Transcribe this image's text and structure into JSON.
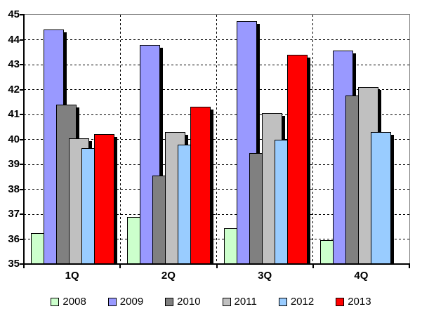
{
  "chart_data": {
    "type": "bar",
    "title": "",
    "xlabel": "",
    "ylabel": "",
    "categories": [
      "1Q",
      "2Q",
      "3Q",
      "4Q"
    ],
    "series": [
      {
        "name": "2008",
        "color": "#CCFFCC",
        "values": [
          36.25,
          36.9,
          36.45,
          35.95
        ]
      },
      {
        "name": "2009",
        "color": "#9999FF",
        "values": [
          44.4,
          43.8,
          44.75,
          43.55
        ]
      },
      {
        "name": "2010",
        "color": "#808080",
        "values": [
          41.4,
          38.55,
          39.45,
          41.75
        ]
      },
      {
        "name": "2011",
        "color": "#C0C0C0",
        "values": [
          40.05,
          40.3,
          41.05,
          42.1
        ]
      },
      {
        "name": "2012",
        "color": "#99CCFF",
        "values": [
          39.65,
          39.8,
          40.0,
          40.3
        ]
      },
      {
        "name": "2013",
        "color": "#FF0000",
        "values": [
          40.2,
          41.3,
          43.4,
          null
        ]
      }
    ],
    "ylim": [
      35,
      45
    ],
    "ytick_step": 1,
    "y_tick_labels": [
      "45",
      "44",
      "43",
      "42",
      "41",
      "40",
      "39",
      "38",
      "37",
      "36",
      "35"
    ],
    "grid": "dashed-horizontal-and-category-separators",
    "gridline_color": "#000000",
    "plot_border_color": "#808080",
    "axis_color": "#000000",
    "bar_shadow_color": "#000000",
    "background_color": "#FFFFFF",
    "legend_position": "bottom",
    "legend_entries": [
      "2008",
      "2009",
      "2010",
      "2011",
      "2012",
      "2013"
    ]
  }
}
